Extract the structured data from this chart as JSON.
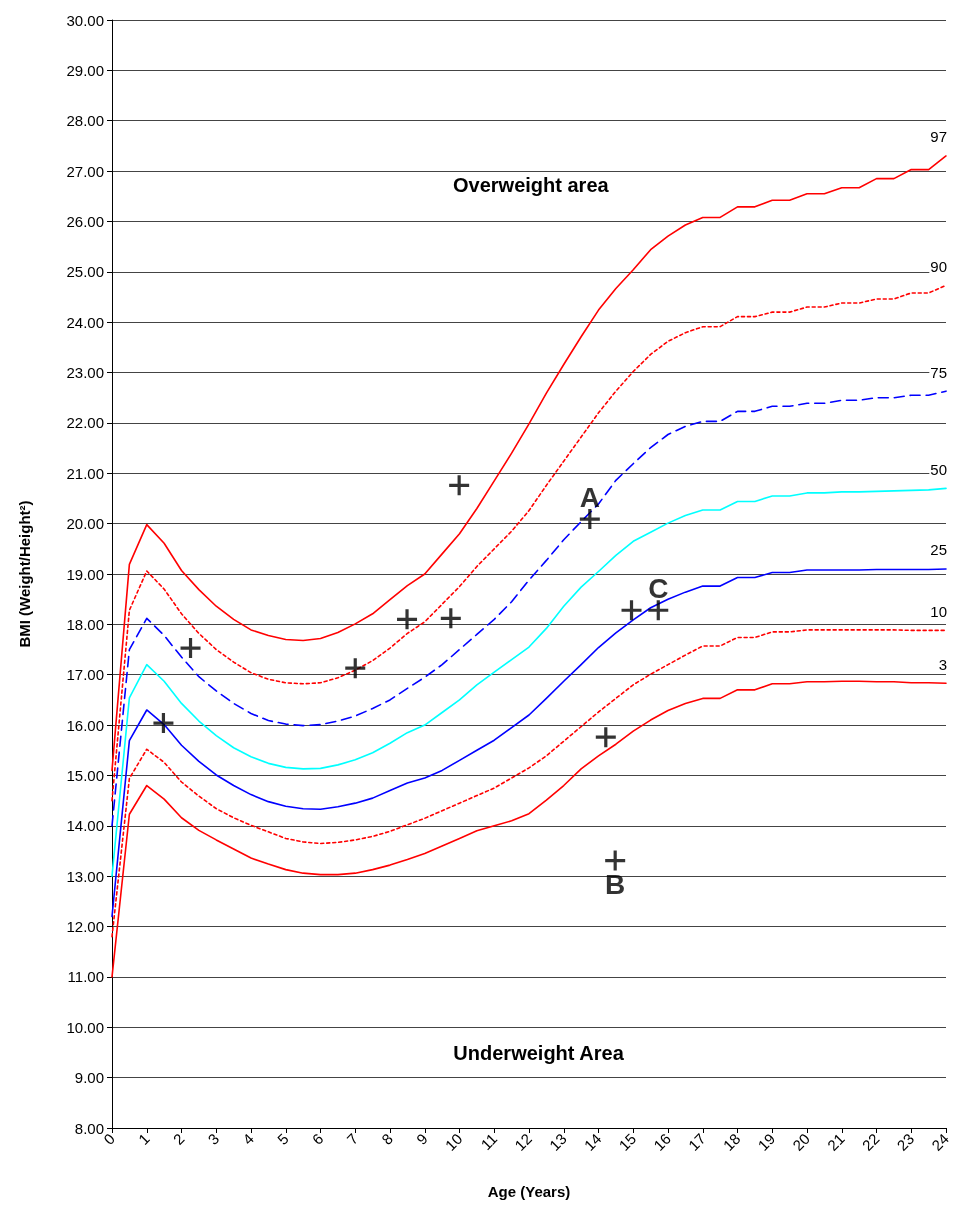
{
  "chart_data": {
    "type": "line",
    "xlabel": "Age (Years)",
    "ylabel": "BMI (Weight/Height²)",
    "x": [
      0,
      0.5,
      1,
      1.5,
      2,
      2.5,
      3,
      3.5,
      4,
      4.5,
      5,
      5.5,
      6,
      6.5,
      7,
      7.5,
      8,
      8.5,
      9,
      9.5,
      10,
      10.5,
      11,
      11.5,
      12,
      12.5,
      13,
      13.5,
      14,
      14.5,
      15,
      15.5,
      16,
      16.5,
      17,
      17.5,
      18,
      18.5,
      19,
      19.5,
      20,
      20.5,
      21,
      21.5,
      22,
      22.5,
      23,
      23.5,
      24
    ],
    "series": [
      {
        "name": "97",
        "color": "#ff0000",
        "line_style": "solid",
        "values": [
          15.1,
          19.19,
          19.98,
          19.61,
          19.07,
          18.69,
          18.36,
          18.1,
          17.89,
          17.78,
          17.7,
          17.68,
          17.72,
          17.84,
          18.01,
          18.21,
          18.49,
          18.77,
          19.0,
          19.4,
          19.8,
          20.3,
          20.85,
          21.4,
          21.98,
          22.59,
          23.16,
          23.71,
          24.24,
          24.67,
          25.04,
          25.44,
          25.71,
          25.93,
          26.08,
          26.08,
          26.29,
          26.29,
          26.42,
          26.42,
          26.55,
          26.55,
          26.67,
          26.67,
          26.85,
          26.85,
          27.03,
          27.03,
          27.3
        ]
      },
      {
        "name": "90",
        "color": "#ff0000",
        "line_style": "dotted",
        "values": [
          14.5,
          18.28,
          19.06,
          18.7,
          18.21,
          17.82,
          17.5,
          17.25,
          17.04,
          16.91,
          16.84,
          16.82,
          16.84,
          16.94,
          17.09,
          17.28,
          17.53,
          17.82,
          18.05,
          18.4,
          18.75,
          19.15,
          19.5,
          19.85,
          20.26,
          20.76,
          21.24,
          21.72,
          22.2,
          22.63,
          23.02,
          23.36,
          23.62,
          23.79,
          23.91,
          23.91,
          24.11,
          24.11,
          24.2,
          24.2,
          24.3,
          24.3,
          24.38,
          24.38,
          24.46,
          24.46,
          24.58,
          24.58,
          24.73
        ]
      },
      {
        "name": "75",
        "color": "#0000ff",
        "line_style": "dashed",
        "values": [
          14.0,
          17.5,
          18.12,
          17.78,
          17.35,
          16.96,
          16.68,
          16.43,
          16.23,
          16.09,
          16.02,
          15.99,
          16.01,
          16.08,
          16.18,
          16.33,
          16.5,
          16.73,
          16.95,
          17.2,
          17.5,
          17.8,
          18.1,
          18.45,
          18.88,
          19.27,
          19.68,
          20.04,
          20.39,
          20.86,
          21.19,
          21.51,
          21.77,
          21.93,
          22.03,
          22.03,
          22.23,
          22.23,
          22.33,
          22.33,
          22.39,
          22.39,
          22.45,
          22.45,
          22.5,
          22.5,
          22.55,
          22.55,
          22.63
        ]
      },
      {
        "name": "50",
        "color": "#00ffff",
        "line_style": "solid",
        "values": [
          13.0,
          16.54,
          17.2,
          16.87,
          16.43,
          16.08,
          15.79,
          15.55,
          15.37,
          15.24,
          15.16,
          15.13,
          15.14,
          15.21,
          15.31,
          15.45,
          15.64,
          15.85,
          16.0,
          16.25,
          16.5,
          16.8,
          17.05,
          17.3,
          17.55,
          17.92,
          18.36,
          18.74,
          19.05,
          19.37,
          19.65,
          19.83,
          20.01,
          20.16,
          20.27,
          20.27,
          20.44,
          20.44,
          20.55,
          20.55,
          20.61,
          20.61,
          20.63,
          20.63,
          20.64,
          20.65,
          20.66,
          20.67,
          20.7
        ]
      },
      {
        "name": "25",
        "color": "#0000ff",
        "line_style": "solid",
        "values": [
          12.2,
          15.69,
          16.3,
          16.01,
          15.6,
          15.28,
          15.01,
          14.8,
          14.62,
          14.48,
          14.39,
          14.34,
          14.33,
          14.38,
          14.45,
          14.55,
          14.7,
          14.85,
          14.95,
          15.1,
          15.3,
          15.5,
          15.7,
          15.95,
          16.2,
          16.53,
          16.87,
          17.2,
          17.54,
          17.83,
          18.09,
          18.33,
          18.5,
          18.64,
          18.76,
          18.76,
          18.93,
          18.93,
          19.03,
          19.03,
          19.08,
          19.08,
          19.08,
          19.08,
          19.09,
          19.09,
          19.09,
          19.09,
          19.1
        ]
      },
      {
        "name": "10",
        "color": "#ff0000",
        "line_style": "dotted",
        "values": [
          11.8,
          14.94,
          15.52,
          15.26,
          14.87,
          14.59,
          14.34,
          14.16,
          14.01,
          13.88,
          13.75,
          13.68,
          13.65,
          13.67,
          13.72,
          13.79,
          13.89,
          14.02,
          14.15,
          14.3,
          14.45,
          14.6,
          14.75,
          14.95,
          15.15,
          15.39,
          15.68,
          15.97,
          16.26,
          16.53,
          16.8,
          17.01,
          17.2,
          17.39,
          17.57,
          17.57,
          17.74,
          17.74,
          17.85,
          17.85,
          17.89,
          17.89,
          17.89,
          17.89,
          17.89,
          17.89,
          17.88,
          17.88,
          17.88
        ]
      },
      {
        "name": "3",
        "color": "#ff0000",
        "line_style": "solid",
        "values": [
          11.0,
          14.23,
          14.8,
          14.53,
          14.16,
          13.91,
          13.72,
          13.54,
          13.36,
          13.24,
          13.13,
          13.06,
          13.03,
          13.03,
          13.06,
          13.13,
          13.22,
          13.33,
          13.45,
          13.6,
          13.75,
          13.9,
          14.0,
          14.1,
          14.24,
          14.51,
          14.8,
          15.13,
          15.39,
          15.62,
          15.88,
          16.1,
          16.29,
          16.43,
          16.53,
          16.53,
          16.7,
          16.7,
          16.82,
          16.82,
          16.86,
          16.86,
          16.87,
          16.87,
          16.86,
          16.86,
          16.84,
          16.84,
          16.83
        ]
      },
      {
        "type": "scatter",
        "color": "#000000",
        "marker": "cross",
        "x": [
          1.48,
          2.26,
          7.0,
          8.49,
          9.75,
          9.99,
          13.75,
          14.21,
          14.48,
          14.95,
          15.72
        ],
        "values": [
          16.04,
          17.53,
          17.13,
          18.1,
          18.12,
          20.76,
          20.09,
          15.76,
          13.31,
          18.28,
          18.28
        ]
      }
    ],
    "annotations": [
      "Overweight area",
      "Underweight Area",
      {
        "text": "A",
        "x": 13.75,
        "y": 20.09
      },
      {
        "text": "B",
        "x": 14.48,
        "y": 13.31
      },
      {
        "text": "C",
        "x": 15.72,
        "y": 18.28
      }
    ],
    "xlim": [
      0,
      24
    ],
    "xticks": [
      0,
      1,
      2,
      3,
      4,
      5,
      6,
      7,
      8,
      9,
      10,
      11,
      12,
      13,
      14,
      15,
      16,
      17,
      18,
      19,
      20,
      21,
      22,
      23,
      24
    ],
    "ylim": [
      8,
      30
    ],
    "yticks": [
      {
        "value": 8,
        "label": "8.00"
      },
      {
        "value": 9,
        "label": "9.00"
      },
      {
        "value": 10,
        "label": "10.00"
      },
      {
        "value": 11,
        "label": "11.00"
      },
      {
        "value": 12,
        "label": "12.00"
      },
      {
        "value": 13,
        "label": "13.00"
      },
      {
        "value": 14,
        "label": "14.00"
      },
      {
        "value": 15,
        "label": "15.00"
      },
      {
        "value": 16,
        "label": "16.00"
      },
      {
        "value": 17,
        "label": "17.00"
      },
      {
        "value": 18,
        "label": "18.00"
      },
      {
        "value": 19,
        "label": "19.00"
      },
      {
        "value": 20,
        "label": "20.00"
      },
      {
        "value": 21,
        "label": "21.00"
      },
      {
        "value": 22,
        "label": "22.00"
      },
      {
        "value": 23,
        "label": "23.00"
      },
      {
        "value": 24,
        "label": "24.00"
      },
      {
        "value": 25,
        "label": "25.00"
      },
      {
        "value": 26,
        "label": "26.00"
      },
      {
        "value": 27,
        "label": "27.00"
      },
      {
        "value": 28,
        "label": "28.00"
      },
      {
        "value": 29,
        "label": "29.00"
      },
      {
        "value": 30,
        "label": "30.00"
      }
    ],
    "grid": "y",
    "legend": false,
    "marker": "none"
  }
}
